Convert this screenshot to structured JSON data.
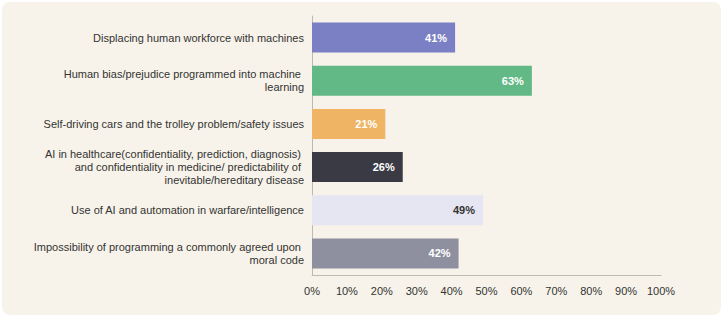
{
  "chart_data": {
    "type": "bar",
    "orientation": "horizontal",
    "categories": [
      "Displacing human workforce with machines",
      "Human bias/prejudice programmed into machine learning",
      "Self-driving cars and the trolley problem/safety issues",
      "AI in healthcare(confidentiality, prediction, diagnosis) and confidentiality in medicine/ predictability of inevitable/hereditary disease",
      "Use of AI and automation in warfare/intelligence",
      "Impossibility of programming a commonly agreed upon moral code"
    ],
    "values": [
      41,
      63,
      21,
      26,
      49,
      42
    ],
    "value_labels": [
      "41%",
      "63%",
      "21%",
      "26%",
      "49%",
      "42%"
    ],
    "colors": [
      "#7b80c5",
      "#62b985",
      "#f0b564",
      "#3a3a44",
      "#e6e6f2",
      "#8f909f"
    ],
    "xlim": [
      0,
      100
    ],
    "xticks": [
      {
        "value": 0,
        "label": "0%"
      },
      {
        "value": 10,
        "label": "10%"
      },
      {
        "value": 20,
        "label": "20%"
      },
      {
        "value": 30,
        "label": "30%"
      },
      {
        "value": 40,
        "label": "40%"
      },
      {
        "value": 50,
        "label": "50%"
      },
      {
        "value": 60,
        "label": "60%"
      },
      {
        "value": 70,
        "label": "70%"
      },
      {
        "value": 80,
        "label": "80%"
      },
      {
        "value": 90,
        "label": "90%"
      },
      {
        "value": 100,
        "label": "100%"
      }
    ],
    "grid": false,
    "data_labels": true
  }
}
